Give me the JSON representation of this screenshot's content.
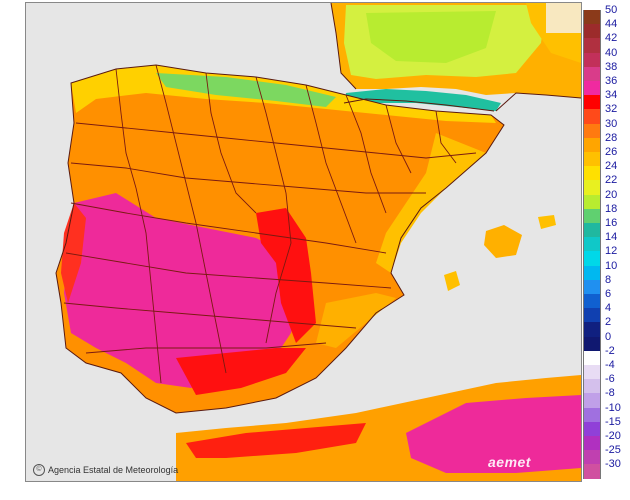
{
  "credit": {
    "text": "Agencia Estatal de Meteorología",
    "icon": "copyright-icon"
  },
  "logo": {
    "text": "aemet"
  },
  "legend": {
    "labels": [
      "50",
      "44",
      "42",
      "40",
      "38",
      "36",
      "34",
      "32",
      "30",
      "28",
      "26",
      "24",
      "22",
      "20",
      "18",
      "16",
      "14",
      "12",
      "10",
      "8",
      "6",
      "4",
      "2",
      "0",
      "-2",
      "-4",
      "-6",
      "-8",
      "-10",
      "-15",
      "-20",
      "-25",
      "-30"
    ],
    "colors": [
      "#8b3a1a",
      "#9c2b2b",
      "#b03040",
      "#c2305a",
      "#d93c8a",
      "#f02aa0",
      "#ff0000",
      "#ff4a1a",
      "#ff7a10",
      "#ffa500",
      "#ffc000",
      "#ffe000",
      "#e8f020",
      "#b8ec30",
      "#60d070",
      "#20b8a0",
      "#10c8c8",
      "#00d8e8",
      "#00b8f0",
      "#2090f0",
      "#1060d0",
      "#1040b0",
      "#102080",
      "#101870",
      "#ffffff",
      "#e8dcf4",
      "#d4c0ec",
      "#c0a0e8",
      "#a070e0",
      "#9040d8",
      "#b030c0",
      "#c040b0",
      "#d050a0"
    ]
  }
}
